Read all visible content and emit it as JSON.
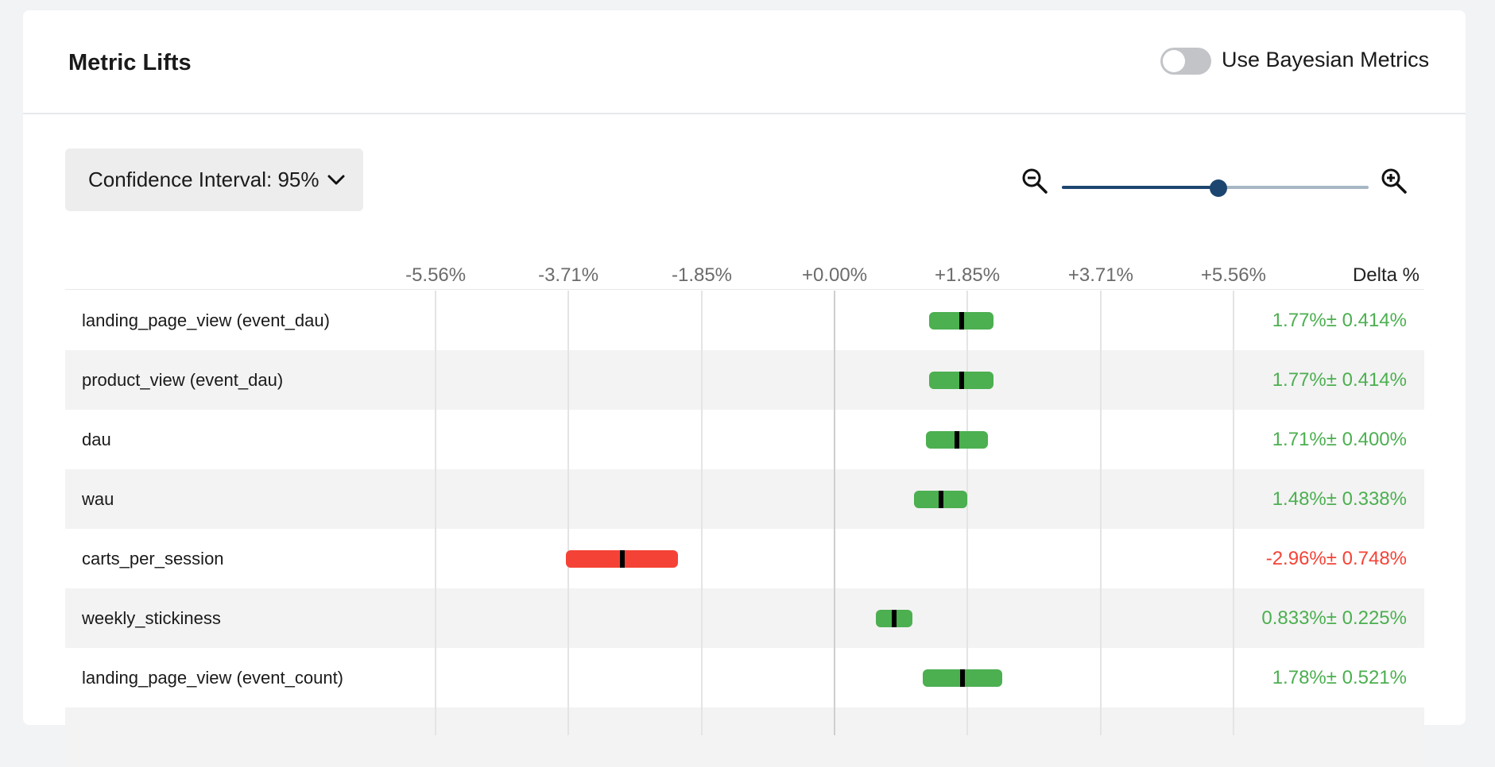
{
  "header": {
    "title": "Metric Lifts",
    "toggle_label": "Use Bayesian Metrics",
    "toggle_on": false
  },
  "controls": {
    "ci_label": "Confidence Interval: 95%",
    "zoom_level": 0.51
  },
  "axis": {
    "ticks": [
      "-5.56%",
      "-3.71%",
      "-1.85%",
      "+0.00%",
      "+1.85%",
      "+3.71%",
      "+5.56%"
    ],
    "tick_values": [
      -5.56,
      -3.71,
      -1.85,
      0.0,
      1.85,
      3.71,
      5.56
    ],
    "delta_header": "Delta %"
  },
  "colors": {
    "positive": "#4caf50",
    "negative": "#f44336"
  },
  "metrics": [
    {
      "name": "landing_page_view (event_dau)",
      "delta": 1.77,
      "ci": 0.414,
      "delta_label": "1.77%± 0.414%"
    },
    {
      "name": "product_view (event_dau)",
      "delta": 1.77,
      "ci": 0.414,
      "delta_label": "1.77%± 0.414%"
    },
    {
      "name": "dau",
      "delta": 1.71,
      "ci": 0.4,
      "delta_label": "1.71%± 0.400%"
    },
    {
      "name": "wau",
      "delta": 1.48,
      "ci": 0.338,
      "delta_label": "1.48%± 0.338%"
    },
    {
      "name": "carts_per_session",
      "delta": -2.96,
      "ci": 0.748,
      "delta_label": "-2.96%± 0.748%"
    },
    {
      "name": "weekly_stickiness",
      "delta": 0.833,
      "ci": 0.225,
      "delta_label": "0.833%± 0.225%"
    },
    {
      "name": "landing_page_view (event_count)",
      "delta": 1.78,
      "ci": 0.521,
      "delta_label": "1.78%± 0.521%"
    },
    {
      "name": "",
      "delta": null,
      "ci": null,
      "delta_label": ""
    }
  ]
}
